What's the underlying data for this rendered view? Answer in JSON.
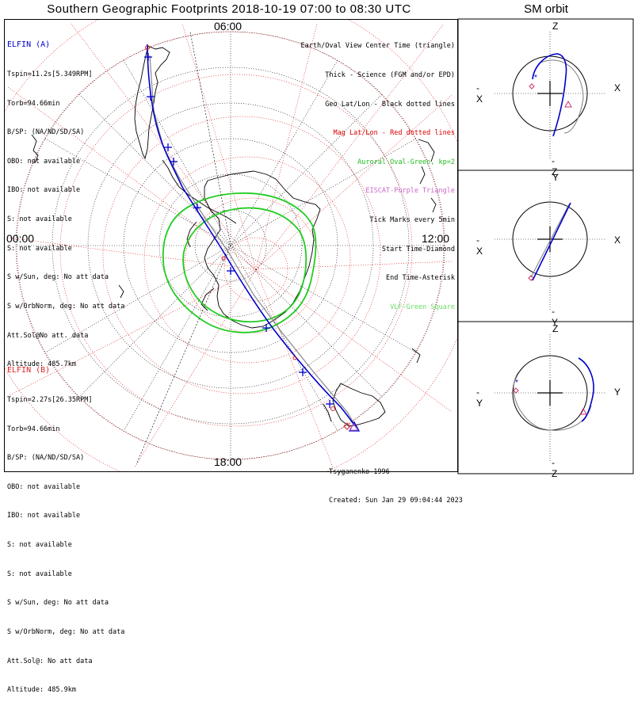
{
  "title": "Southern Geographic Footprints 2018-10-19 07:00 to 08:30 UTC",
  "sm_title": "SM orbit",
  "time_labels": {
    "top": "06:00",
    "left": "00:00",
    "right": "12:00",
    "bottom": "18:00"
  },
  "elfin_a": {
    "name": "ELFIN (A)",
    "color": "#0000cc",
    "lines": [
      "Tspin=11.2s[5.349RPM]",
      "Torb=94.66min",
      "B/SP: (NA/ND/SD/SA)",
      "OBO: not available",
      "IBO: not available",
      "S: not available",
      "S: not available",
      "S w/Sun, deg: No att data",
      "S w/OrbNorm, deg: No att data",
      "Att.Sol@No att. data",
      "Altitude: 485.7km"
    ]
  },
  "elfin_b": {
    "name": "ELFIN (B)",
    "color": "#dd2222",
    "lines": [
      "Tspin=2.27s[26.35RPM]",
      "Torb=94.66min",
      "B/SP: (NA/ND/SD/SA)",
      "OBO: not available",
      "IBO: not available",
      "S: not available",
      "S: not available",
      "S w/Sun, deg: No att data",
      "S w/OrbNorm, deg: No att data",
      "Att.Sol@: No att data",
      "Altitude: 485.9km"
    ]
  },
  "legend": [
    {
      "text": "Earth/Oval View Center Time (triangle)",
      "color": "#000000"
    },
    {
      "text": "Thick - Science (FGM and/or EPD)",
      "color": "#000000"
    },
    {
      "text": "Geo Lat/Lon - Black dotted lines",
      "color": "#000000"
    },
    {
      "text": "Mag Lat/Lon - Red dotted lines",
      "color": "#dd0000"
    },
    {
      "text": "Auroral Oval-Green, kp=2",
      "color": "#22bb22"
    },
    {
      "text": "EISCAT-Purple Triangle",
      "color": "#cc66cc"
    },
    {
      "text": "Tick Marks every 5min",
      "color": "#000000"
    },
    {
      "text": "Start Time-Diamond",
      "color": "#000000"
    },
    {
      "text": "End Time-Asterisk",
      "color": "#000000"
    },
    {
      "text": "VLF-Green Square",
      "color": "#66dd66"
    }
  ],
  "credit": {
    "line1": "Tsyganenko-1996",
    "line2": "Created: Sun Jan 29 09:04:44 2023"
  },
  "sm_panels": [
    {
      "top": "Z",
      "bottom": "-Z",
      "left": "-X",
      "right": "X"
    },
    {
      "top": "Y",
      "bottom": "-Y",
      "left": "-X",
      "right": "X"
    },
    {
      "top": "Z",
      "bottom": "-Z",
      "left": "-Y",
      "right": "Y"
    }
  ],
  "colors": {
    "orbit": "#0000cc",
    "orbit_b": "#888888",
    "mag_grid": "#dd0000",
    "oval": "#22cc22",
    "tick": "#0000cc"
  }
}
